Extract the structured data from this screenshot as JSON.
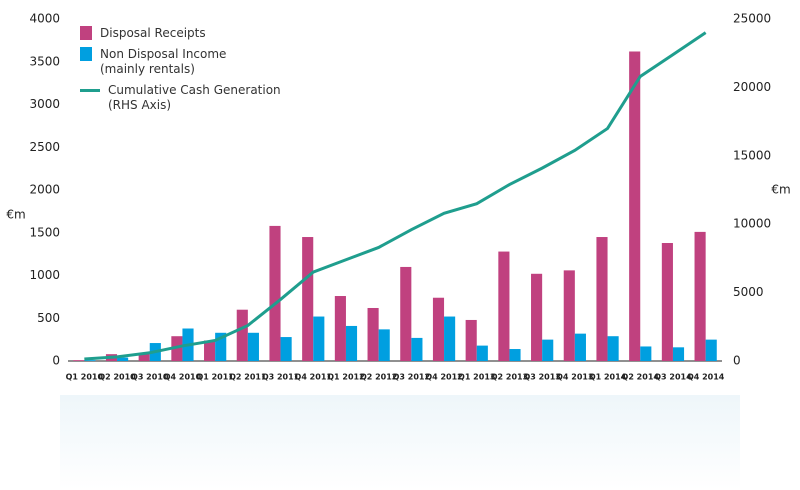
{
  "chart_data": {
    "type": "bar-line",
    "y_label": "€m",
    "y2_label": "€m",
    "categories": [
      "Q1 2010",
      "Q2 2010",
      "Q3 2010",
      "Q4 2010",
      "Q1 2011",
      "Q2 2011",
      "Q3 2011",
      "Q4 2011",
      "Q1 2012",
      "Q2 2012",
      "Q3 2012",
      "Q4 2012",
      "Q1 2013",
      "Q2 2013",
      "Q3 2013",
      "Q4 2013",
      "Q1 2014",
      "Q2 2014",
      "Q3 2014",
      "Q4 2014"
    ],
    "series": [
      {
        "name": "Disposal Receipts",
        "color": "#c0417f",
        "kind": "bar",
        "values": [
          10,
          80,
          90,
          290,
          240,
          600,
          1580,
          1450,
          760,
          620,
          1100,
          740,
          480,
          1280,
          1020,
          1060,
          1450,
          3620,
          1380,
          1510
        ]
      },
      {
        "name": "Non Disposal Income\n(mainly rentals)",
        "color": "#009fe0",
        "kind": "bar",
        "values": [
          10,
          40,
          210,
          380,
          330,
          330,
          280,
          520,
          410,
          370,
          270,
          520,
          180,
          140,
          250,
          320,
          290,
          170,
          160,
          250
        ]
      },
      {
        "name": "Cumulative Cash Generation\n(RHS Axis)",
        "color": "#1f9e8e",
        "kind": "line",
        "axis": "y2",
        "values": [
          150,
          300,
          600,
          1100,
          1500,
          2600,
          4500,
          6500,
          7400,
          8300,
          9600,
          10800,
          11500,
          12900,
          14100,
          15400,
          17000,
          20800,
          22400,
          24000
        ]
      }
    ],
    "ylim": [
      0,
      4000
    ],
    "yticks": [
      0,
      500,
      1000,
      1500,
      2000,
      2500,
      3000,
      3500,
      4000
    ],
    "y2lim": [
      0,
      25000
    ],
    "y2ticks": [
      0,
      5000,
      10000,
      15000,
      20000,
      25000
    ],
    "legend": "top-left"
  }
}
